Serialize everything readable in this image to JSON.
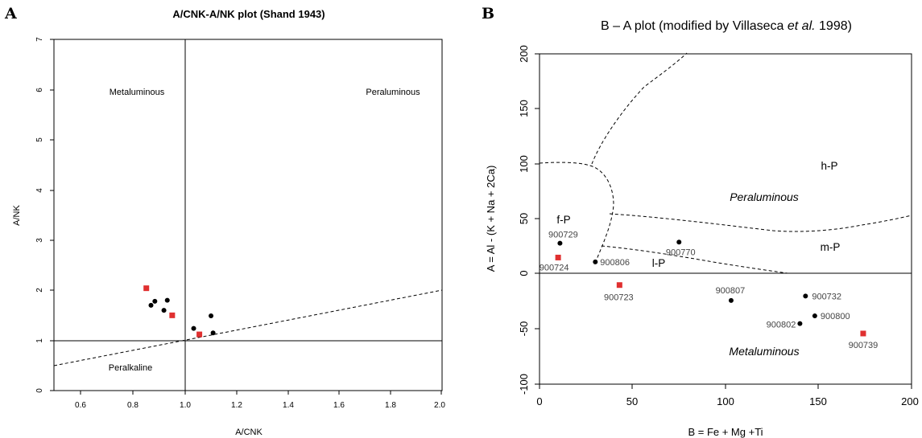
{
  "panels": {
    "a": "A",
    "b": "B"
  },
  "chart_data": [
    {
      "type": "scatter",
      "title": "A/CNK-A/NK plot (Shand 1943)",
      "xlabel": "A/CNK",
      "ylabel": "A/NK",
      "xlim": [
        0.5,
        2.0
      ],
      "ylim": [
        0,
        7
      ],
      "xticks": [
        "0.6",
        "0.8",
        "1.0",
        "1.2",
        "1.4",
        "1.6",
        "1.8",
        "2.0"
      ],
      "yticks": [
        "0",
        "1",
        "2",
        "3",
        "4",
        "5",
        "6",
        "7"
      ],
      "regions": {
        "metaluminous": "Metaluminous",
        "peraluminous": "Peraluminous",
        "peralkaline": "Peralkaline"
      },
      "grid": false,
      "series": [
        {
          "color": "#000000",
          "marker": "circle",
          "points": [
            [
              0.875,
              1.7
            ],
            [
              0.89,
              1.78
            ],
            [
              0.925,
              1.6
            ],
            [
              0.938,
              1.8
            ],
            [
              1.04,
              1.24
            ],
            [
              1.107,
              1.49
            ],
            [
              1.115,
              1.15
            ]
          ]
        },
        {
          "color": "#e03030",
          "marker": "square",
          "points": [
            [
              0.857,
              2.04
            ],
            [
              0.957,
              1.5
            ],
            [
              1.062,
              1.12
            ]
          ]
        }
      ]
    },
    {
      "type": "scatter",
      "title": "B – A plot (modified by Villaseca et al. 1998)",
      "title_parts": {
        "pre": "B – A plot (modified by Villaseca ",
        "italic": "et al.",
        "post": " 1998)"
      },
      "xlabel": "B = Fe + Mg +Ti",
      "ylabel": "A = Al - (K + Na + 2Ca)",
      "xlim": [
        0,
        200
      ],
      "ylim": [
        -100,
        200
      ],
      "xticks": [
        "0",
        "50",
        "100",
        "150",
        "200"
      ],
      "yticks": [
        "-100",
        "-50",
        "0",
        "50",
        "100",
        "150",
        "200"
      ],
      "regions": {
        "fP": "f-P",
        "hP": "h-P",
        "mP": "m-P",
        "lP": "l-P",
        "peraluminous": "Peraluminous",
        "metaluminous": "Metaluminous"
      },
      "grid": false,
      "points": [
        {
          "label": "900729",
          "x": 11,
          "y": 28,
          "color": "#000000",
          "marker": "circle"
        },
        {
          "label": "900724",
          "x": 10,
          "y": 15,
          "color": "#e03030",
          "marker": "square"
        },
        {
          "label": "900806",
          "x": 30,
          "y": 11,
          "color": "#000000",
          "marker": "circle"
        },
        {
          "label": "900770",
          "x": 75,
          "y": 29,
          "color": "#000000",
          "marker": "circle"
        },
        {
          "label": "900723",
          "x": 43,
          "y": -10,
          "color": "#e03030",
          "marker": "square"
        },
        {
          "label": "900807",
          "x": 103,
          "y": -24,
          "color": "#000000",
          "marker": "circle"
        },
        {
          "label": "900732",
          "x": 143,
          "y": -20,
          "color": "#000000",
          "marker": "circle"
        },
        {
          "label": "900802",
          "x": 140,
          "y": -45,
          "color": "#000000",
          "marker": "circle"
        },
        {
          "label": "900800",
          "x": 148,
          "y": -38,
          "color": "#000000",
          "marker": "circle"
        },
        {
          "label": "900739",
          "x": 174,
          "y": -54,
          "color": "#e03030",
          "marker": "square"
        }
      ]
    }
  ]
}
